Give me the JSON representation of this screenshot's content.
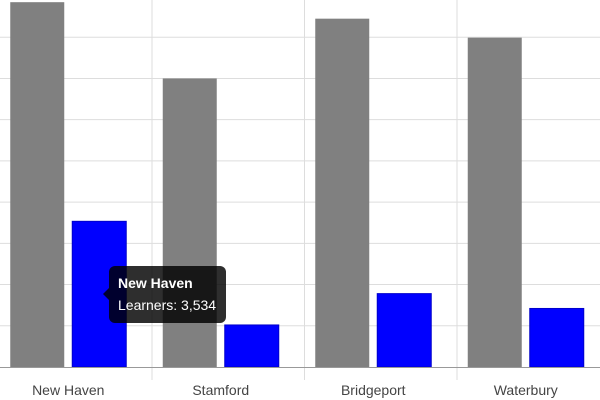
{
  "chart_data": {
    "type": "bar",
    "categories": [
      "New Haven",
      "Stamford",
      "Bridgeport",
      "Waterbury"
    ],
    "series": [
      {
        "values": [
          8850,
          7000,
          8450,
          7990
        ],
        "color": "#808080"
      },
      {
        "name": "Learners",
        "values": [
          3534,
          1020,
          1780,
          1420
        ],
        "color": "#0000ff"
      }
    ],
    "ylim": [
      0,
      9000
    ],
    "grid": true,
    "legend": "none"
  },
  "tooltip": {
    "title": "New Haven",
    "label": "Learners: 3,534"
  }
}
